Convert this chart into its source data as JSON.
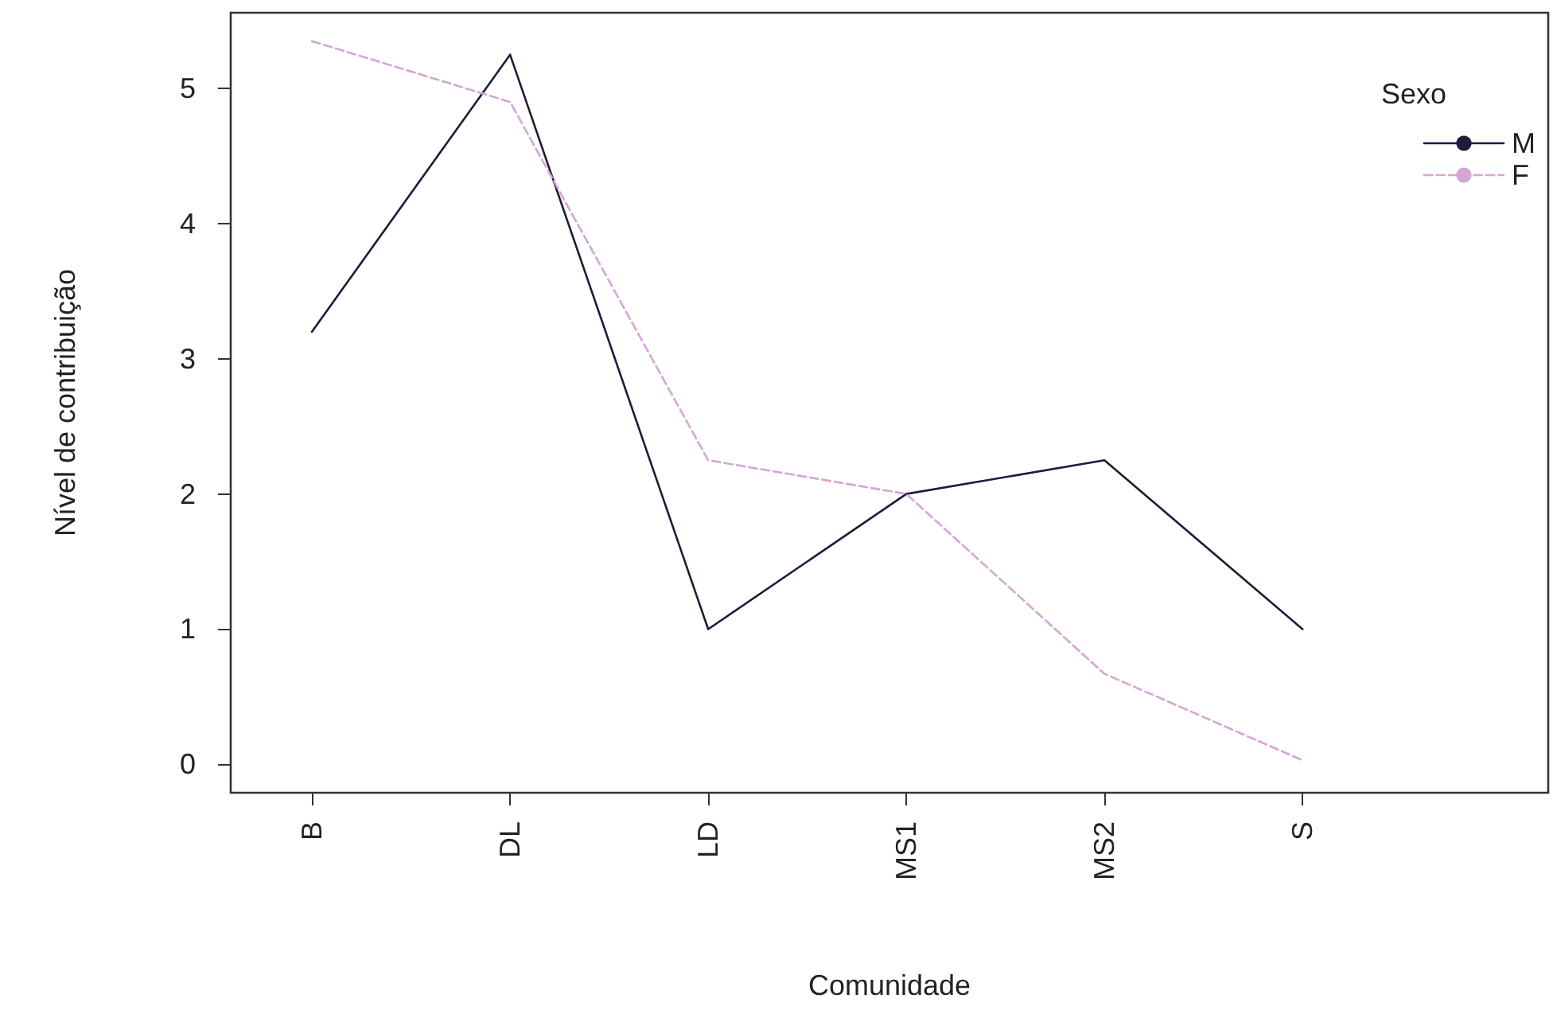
{
  "chart_data": {
    "type": "line",
    "xlabel": "Comunidade",
    "ylabel": "Nível de contribuição",
    "legend_title": "Sexo",
    "legend": "top right",
    "grid": false,
    "marker": "none",
    "categories": [
      "B",
      "DL",
      "LD",
      "MS1",
      "MS2",
      "S"
    ],
    "ylim": [
      -0.21,
      5.56
    ],
    "yticks": [
      0,
      1,
      2,
      3,
      4,
      5
    ],
    "series": [
      {
        "name": "M",
        "color": "#1c1c3c",
        "line_style": "solid",
        "values": [
          3.2,
          5.25,
          1.0,
          2.0,
          2.25,
          1.0
        ]
      },
      {
        "name": "F",
        "color": "#d4a6d4",
        "line_style": "dashed",
        "values": [
          5.35,
          4.9,
          2.25,
          2.0,
          0.67,
          0.03
        ]
      }
    ]
  }
}
